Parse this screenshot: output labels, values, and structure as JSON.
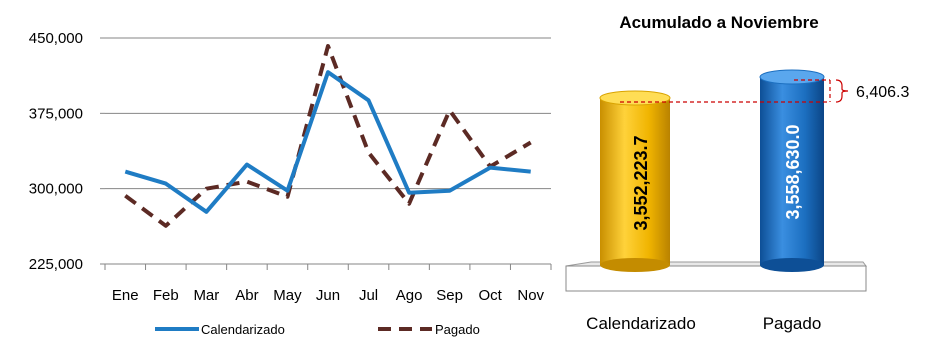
{
  "chart_data": [
    {
      "type": "line",
      "categories": [
        "Ene",
        "Feb",
        "Mar",
        "Abr",
        "May",
        "Jun",
        "Jul",
        "Ago",
        "Sep",
        "Oct",
        "Nov"
      ],
      "ylim": [
        225000,
        450000
      ],
      "yticks": [
        "225,000",
        "300,000",
        "375,000",
        "450,000"
      ],
      "ytick_values": [
        225000,
        300000,
        375000,
        450000
      ],
      "grid": "horizontal",
      "legend": "bottom",
      "series": [
        {
          "name": "Calendarizado",
          "style": "solid",
          "color": "#1f7cc4",
          "values": [
            317000,
            305000,
            277000,
            324000,
            298000,
            416000,
            388000,
            296000,
            298000,
            321000,
            317000
          ]
        },
        {
          "name": "Pagado",
          "style": "dashed",
          "color": "#5c2a24",
          "values": [
            293000,
            263000,
            300000,
            307000,
            292000,
            442000,
            336000,
            285000,
            378000,
            322000,
            346000
          ]
        }
      ]
    },
    {
      "type": "bar",
      "style": "3d-cylinder",
      "title": "Acumulado a Noviembre",
      "categories": [
        "Calendarizado",
        "Pagado"
      ],
      "values": [
        3552223.7,
        3558630.0
      ],
      "value_labels": [
        "3,552,223.7",
        "3,558,630.0"
      ],
      "colors": [
        "#f0b400",
        "#1c6fc0"
      ],
      "difference": 6406.3,
      "difference_label": "6,406.3"
    }
  ]
}
